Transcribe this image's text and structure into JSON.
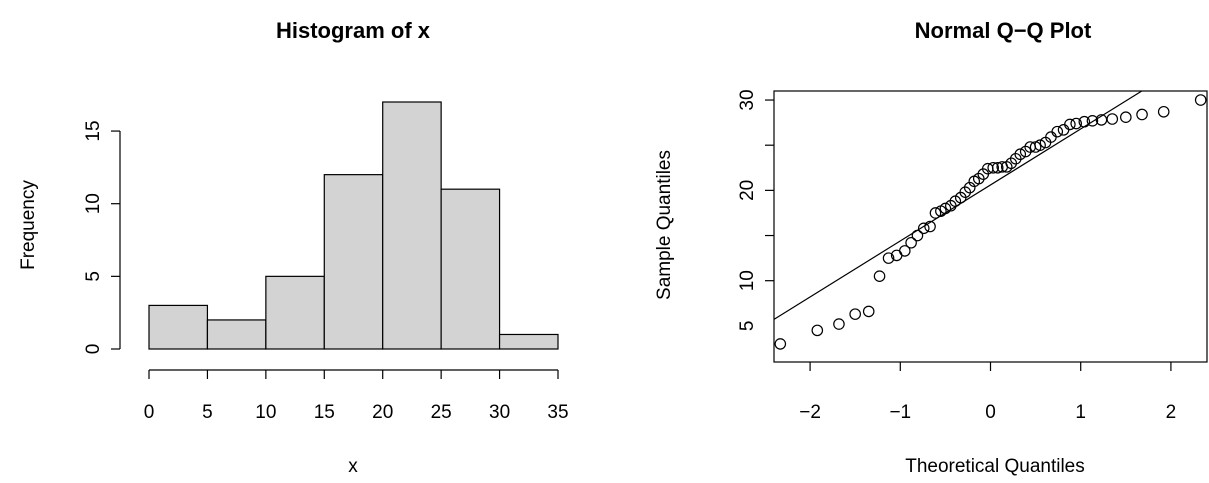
{
  "chart_data": [
    {
      "type": "bar",
      "title": "Histogram of x",
      "xlabel": "x",
      "ylabel": "Frequency",
      "bin_edges": [
        0,
        5,
        10,
        15,
        20,
        25,
        30,
        35
      ],
      "values": [
        3,
        2,
        5,
        12,
        17,
        11,
        1
      ],
      "xlim": [
        0,
        35
      ],
      "ylim": [
        0,
        17
      ],
      "x_ticks": [
        "0",
        "5",
        "10",
        "15",
        "20",
        "25",
        "30",
        "35"
      ],
      "y_ticks": [
        "0",
        "5",
        "10",
        "15"
      ],
      "bar_color": "#d3d3d3",
      "grid": false
    },
    {
      "type": "scatter",
      "title": "Normal Q−Q Plot",
      "xlabel": "Theoretical Quantiles",
      "ylabel": "Sample Quantiles",
      "xlim": [
        -2.4,
        2.4
      ],
      "ylim": [
        1,
        31
      ],
      "x_ticks": [
        "−2",
        "−1",
        "0",
        "1",
        "2"
      ],
      "y_ticks": [
        "5",
        "10",
        "20",
        "30"
      ],
      "reference_line": {
        "slope": 6.2,
        "intercept": 20.6
      },
      "x": [
        -2.33,
        -1.92,
        -1.68,
        -1.5,
        -1.35,
        -1.23,
        -1.13,
        -1.04,
        -0.95,
        -0.88,
        -0.81,
        -0.74,
        -0.67,
        -0.61,
        -0.55,
        -0.5,
        -0.44,
        -0.39,
        -0.33,
        -0.28,
        -0.23,
        -0.18,
        -0.13,
        -0.08,
        -0.03,
        0.03,
        0.08,
        0.13,
        0.18,
        0.23,
        0.28,
        0.33,
        0.39,
        0.44,
        0.5,
        0.55,
        0.61,
        0.67,
        0.74,
        0.81,
        0.88,
        0.95,
        1.04,
        1.13,
        1.23,
        1.35,
        1.5,
        1.68,
        1.92,
        2.33
      ],
      "y": [
        3.0,
        4.5,
        5.2,
        6.3,
        6.6,
        10.5,
        12.5,
        12.8,
        13.3,
        14.2,
        15.0,
        15.8,
        16.0,
        17.5,
        17.7,
        18.0,
        18.3,
        18.8,
        19.2,
        19.8,
        20.3,
        21.0,
        21.3,
        21.8,
        22.4,
        22.5,
        22.5,
        22.6,
        22.6,
        23.0,
        23.5,
        24.0,
        24.3,
        24.8,
        24.8,
        25.0,
        25.3,
        25.9,
        26.5,
        26.7,
        27.3,
        27.4,
        27.6,
        27.7,
        27.8,
        27.9,
        28.1,
        28.4,
        28.7,
        30.0
      ],
      "grid": false
    }
  ]
}
